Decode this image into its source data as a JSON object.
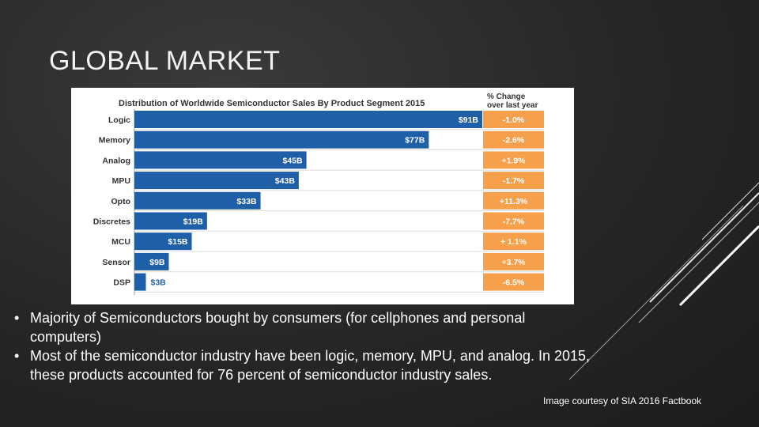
{
  "slide": {
    "title": "GLOBAL MARKET",
    "bullets": [
      "Majority of Semiconductors bought by consumers (for cellphones and personal computers)",
      "Most of the semiconductor industry have been logic, memory, MPU, and analog. In 2015, these products accounted for 76 percent of semiconductor industry sales."
    ],
    "bullet_glyph": "•",
    "credit": "Image courtesy of SIA 2016 Factbook"
  },
  "colors": {
    "bar": "#1f5fa8",
    "change_box": "#f7a04b",
    "chart_text": "#333333",
    "background": "#262626"
  },
  "chart_data": {
    "type": "bar",
    "orientation": "horizontal",
    "title": "Distribution of Worldwide Semiconductor Sales By Product Segment 2015",
    "change_header": [
      "% Change",
      "over last year"
    ],
    "categories": [
      "Logic",
      "Memory",
      "Analog",
      "MPU",
      "Opto",
      "Discretes",
      "MCU",
      "Sensor",
      "DSP"
    ],
    "values": [
      91,
      77,
      45,
      43,
      33,
      19,
      15,
      9,
      3
    ],
    "value_labels": [
      "$91B",
      "$77B",
      "$45B",
      "$43B",
      "$33B",
      "$19B",
      "$15B",
      "$9B",
      "$3B"
    ],
    "unit": "$B",
    "changes": [
      "-1.0%",
      "-2.6%",
      "+1.9%",
      "-1.7%",
      "+11.3%",
      "-7.7%",
      "+ 1.1%",
      "+3.7%",
      "-6.5%"
    ],
    "xlim": [
      0,
      91
    ]
  }
}
